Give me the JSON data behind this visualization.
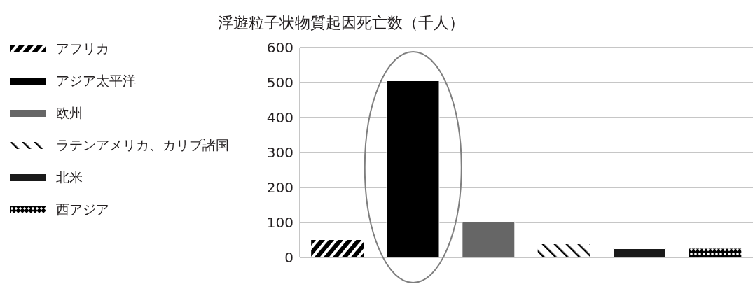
{
  "chart_data": {
    "type": "bar",
    "title": "浮遊粒子状物質起因死亡数（千人）",
    "categories": [
      null,
      null,
      null,
      null,
      null,
      null
    ],
    "series": [
      {
        "name": "アフリカ",
        "color": "#000000",
        "values": [
          50,
          null,
          null,
          null,
          null,
          null
        ]
      },
      {
        "name": "アジア太平洋",
        "color": "#000000",
        "values": [
          null,
          505,
          null,
          null,
          null,
          null
        ]
      },
      {
        "name": "欧州",
        "color": "#666666",
        "values": [
          null,
          null,
          103,
          null,
          null,
          null
        ]
      },
      {
        "name": "ラテンアメリカ、カリブ諸国",
        "color": "#000000",
        "values": [
          null,
          null,
          null,
          38,
          null,
          null
        ]
      },
      {
        "name": "北米",
        "color": "#1a1a1a",
        "values": [
          null,
          null,
          null,
          null,
          25,
          null
        ]
      },
      {
        "name": "西アジア",
        "color": "#000000",
        "values": [
          null,
          null,
          null,
          null,
          null,
          25
        ]
      }
    ],
    "ylim": [
      0,
      600
    ],
    "yticks": [
      0,
      100,
      200,
      300,
      400,
      500,
      600
    ],
    "grid": "y",
    "legend": "left"
  }
}
